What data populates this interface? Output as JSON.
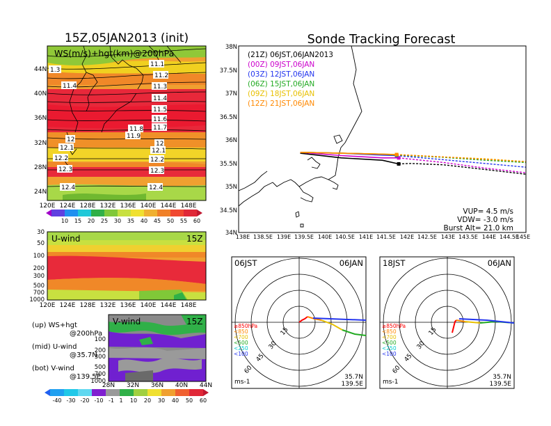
{
  "left": {
    "title": "15Z,05JAN2013 (init)",
    "map_label": "WS(m/s)+hgt(km)@200hPa",
    "map_lon_ticks": [
      "120E",
      "124E",
      "128E",
      "132E",
      "136E",
      "140E",
      "144E",
      "148E"
    ],
    "map_lat_ticks": [
      "44N",
      "40N",
      "36N",
      "32N",
      "28N",
      "24N"
    ],
    "contour_labels": [
      "11.1",
      "11.2",
      "11.3",
      "11.4",
      "11.5",
      "11.6",
      "11.7",
      "11.8",
      "11.9",
      "12",
      "12.1",
      "12.2",
      "12.3",
      "12.4",
      "1.3"
    ],
    "ws_colorbar": [
      "10",
      "15",
      "20",
      "25",
      "30",
      "35",
      "40",
      "45",
      "50",
      "55",
      "60"
    ],
    "uwind_label": "U-wind",
    "uwind_time": "15Z",
    "uwind_p_ticks": [
      "30",
      "50",
      "100",
      "200",
      "300",
      "500",
      "700",
      "1000"
    ],
    "uwind_lon_ticks": [
      "120E",
      "124E",
      "128E",
      "132E",
      "136E",
      "140E",
      "144E",
      "148E"
    ],
    "vwind_label": "V-wind",
    "vwind_time": "15Z",
    "vwind_p_ticks": [
      "100",
      "200",
      "300",
      "500",
      "700",
      "1000"
    ],
    "vwind_lat_ticks": [
      "28N",
      "32N",
      "36N",
      "40N",
      "44N"
    ],
    "legend_up": "(up) WS+hgt",
    "legend_up2": "@200hPa",
    "legend_mid": "(mid) U-wind",
    "legend_mid2": "@35.7N",
    "legend_bot": "(bot) V-wind",
    "legend_bot2": "@139.5E",
    "v_colorbar": [
      "-40",
      "-30",
      "-20",
      "-10",
      "-1",
      "1",
      "10",
      "20",
      "30",
      "40",
      "50",
      "60"
    ]
  },
  "right": {
    "title": "Sonde Tracking Forecast",
    "lat_ticks": [
      "38N",
      "37.5N",
      "37N",
      "36.5N",
      "36N",
      "35.5N",
      "35N",
      "34.5N",
      "34N"
    ],
    "lon_ticks": [
      "138E",
      "138.5E",
      "139E",
      "139.5E",
      "140E",
      "140.5E",
      "141E",
      "141.5E",
      "142E",
      "142.5E",
      "143E",
      "143.5E",
      "144E",
      "144.5E",
      "145E"
    ],
    "legend": [
      {
        "text": "(21Z) 06JST,06JAN2013",
        "color": "#000000"
      },
      {
        "text": "(00Z) 09JST,06JAN",
        "color": "#cc00cc"
      },
      {
        "text": "(03Z) 12JST,06JAN",
        "color": "#2233ee"
      },
      {
        "text": "(06Z) 15JST,06JAN",
        "color": "#22aa22"
      },
      {
        "text": "(09Z) 18JST,06JAN",
        "color": "#e8c000"
      },
      {
        "text": "(12Z) 21JST,06JAN",
        "color": "#ff8800"
      }
    ],
    "params": [
      "VUP= 4.5 m/s",
      "VDW= -3.0 m/s",
      "Burst Alt= 21.0 km"
    ]
  },
  "hodographs": [
    {
      "time": "06JST",
      "date": "06JAN",
      "ring_labels": [
        "15",
        "30",
        "45",
        "60"
      ],
      "levels": [
        "≥850hPa",
        "<850",
        "<700",
        "<500",
        "<250",
        "<100"
      ],
      "lat": "35.7N",
      "lon": "139.5E",
      "unit": "ms-1"
    },
    {
      "time": "18JST",
      "date": "06JAN",
      "ring_labels": [
        "15",
        "30",
        "45",
        "60"
      ],
      "levels": [
        "≥850hPa",
        "<850",
        "<700",
        "<500",
        "<250",
        "<100"
      ],
      "lat": "35.7N",
      "lon": "139.5E",
      "unit": "ms-1"
    }
  ],
  "level_colors": [
    "#ff0000",
    "#ff8800",
    "#e8c000",
    "#22aa22",
    "#00cccc",
    "#2233ee"
  ],
  "chart_data": [
    {
      "type": "line",
      "title": "Sonde Tracking Forecast",
      "xlim": [
        138,
        145
      ],
      "ylim": [
        34,
        38
      ],
      "series": [
        {
          "name": "(21Z) 06JST,06JAN2013",
          "x": [
            139.5,
            140.5,
            141.5,
            141.9,
            142.2,
            143,
            144,
            145
          ],
          "y": [
            35.7,
            35.6,
            35.55,
            35.47,
            35.48,
            35.45,
            35.35,
            35.25
          ]
        },
        {
          "name": "(00Z) 09JST,06JAN",
          "x": [
            139.5,
            140.5,
            141.5,
            141.9,
            143,
            144,
            145
          ],
          "y": [
            35.72,
            35.65,
            35.6,
            35.6,
            35.5,
            35.38,
            35.28
          ]
        },
        {
          "name": "(03Z) 12JST,06JAN",
          "x": [
            139.5,
            140.5,
            141.5,
            141.85,
            143,
            144,
            145
          ],
          "y": [
            35.72,
            35.7,
            35.66,
            35.65,
            35.56,
            35.48,
            35.4
          ]
        },
        {
          "name": "(06Z) 15JST,06JAN",
          "x": [
            139.5,
            140.5,
            141.5,
            141.85,
            143,
            144,
            145
          ],
          "y": [
            35.72,
            35.7,
            35.68,
            35.66,
            35.61,
            35.55,
            35.5
          ]
        },
        {
          "name": "(09Z) 18JST,06JAN",
          "x": [
            139.5,
            140.5,
            141.5,
            141.85,
            143,
            144,
            145
          ],
          "y": [
            35.72,
            35.7,
            35.68,
            35.67,
            35.62,
            35.58,
            35.52
          ]
        },
        {
          "name": "(12Z) 21JST,06JAN",
          "x": [
            139.5,
            140.5,
            141.5,
            141.85,
            143,
            144,
            145
          ],
          "y": [
            35.72,
            35.7,
            35.68,
            35.67,
            35.62,
            35.57,
            35.52
          ]
        }
      ]
    }
  ]
}
